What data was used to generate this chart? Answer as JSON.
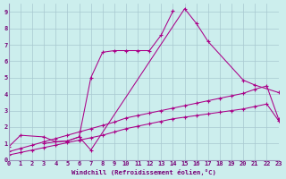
{
  "bg_color": "#cceeed",
  "grid_color": "#a8c8d0",
  "line_color": "#aa0088",
  "xlabel": "Windchill (Refroidissement éolien,°C)",
  "xlim": [
    0,
    23
  ],
  "ylim": [
    0,
    9.5
  ],
  "xticks": [
    0,
    1,
    2,
    3,
    4,
    5,
    6,
    7,
    8,
    9,
    10,
    11,
    12,
    13,
    14,
    15,
    16,
    17,
    18,
    19,
    20,
    21,
    22,
    23
  ],
  "yticks": [
    0,
    1,
    2,
    3,
    4,
    5,
    6,
    7,
    8,
    9
  ],
  "curves": [
    {
      "x": [
        0,
        1,
        3,
        4,
        5,
        6,
        7,
        15,
        16,
        17,
        20,
        21,
        23
      ],
      "y": [
        0.8,
        1.5,
        1.4,
        1.1,
        1.15,
        1.4,
        0.6,
        9.2,
        8.3,
        7.2,
        4.85,
        4.55,
        4.1
      ]
    },
    {
      "x": [
        3,
        4,
        5,
        6,
        7,
        8,
        9,
        10,
        11,
        12,
        13,
        14
      ],
      "y": [
        1.0,
        1.1,
        1.15,
        1.4,
        5.0,
        6.55,
        6.65,
        6.65,
        6.65,
        6.65,
        7.6,
        9.05
      ]
    },
    {
      "x": [
        0,
        1,
        2,
        3,
        4,
        5,
        6,
        7,
        8,
        9,
        10,
        11,
        12,
        13,
        14,
        15,
        16,
        17,
        18,
        19,
        20,
        21,
        22,
        23
      ],
      "y": [
        0.5,
        0.7,
        0.9,
        1.1,
        1.3,
        1.5,
        1.7,
        1.9,
        2.1,
        2.3,
        2.55,
        2.7,
        2.85,
        3.0,
        3.15,
        3.3,
        3.45,
        3.6,
        3.75,
        3.9,
        4.05,
        4.3,
        4.5,
        2.5
      ]
    },
    {
      "x": [
        0,
        1,
        2,
        3,
        4,
        5,
        6,
        7,
        8,
        9,
        10,
        11,
        12,
        13,
        14,
        15,
        16,
        17,
        18,
        19,
        20,
        21,
        22,
        23
      ],
      "y": [
        0.3,
        0.45,
        0.6,
        0.75,
        0.9,
        1.05,
        1.2,
        1.35,
        1.5,
        1.7,
        1.9,
        2.05,
        2.2,
        2.35,
        2.5,
        2.6,
        2.7,
        2.8,
        2.9,
        3.0,
        3.1,
        3.25,
        3.4,
        2.4
      ]
    }
  ]
}
